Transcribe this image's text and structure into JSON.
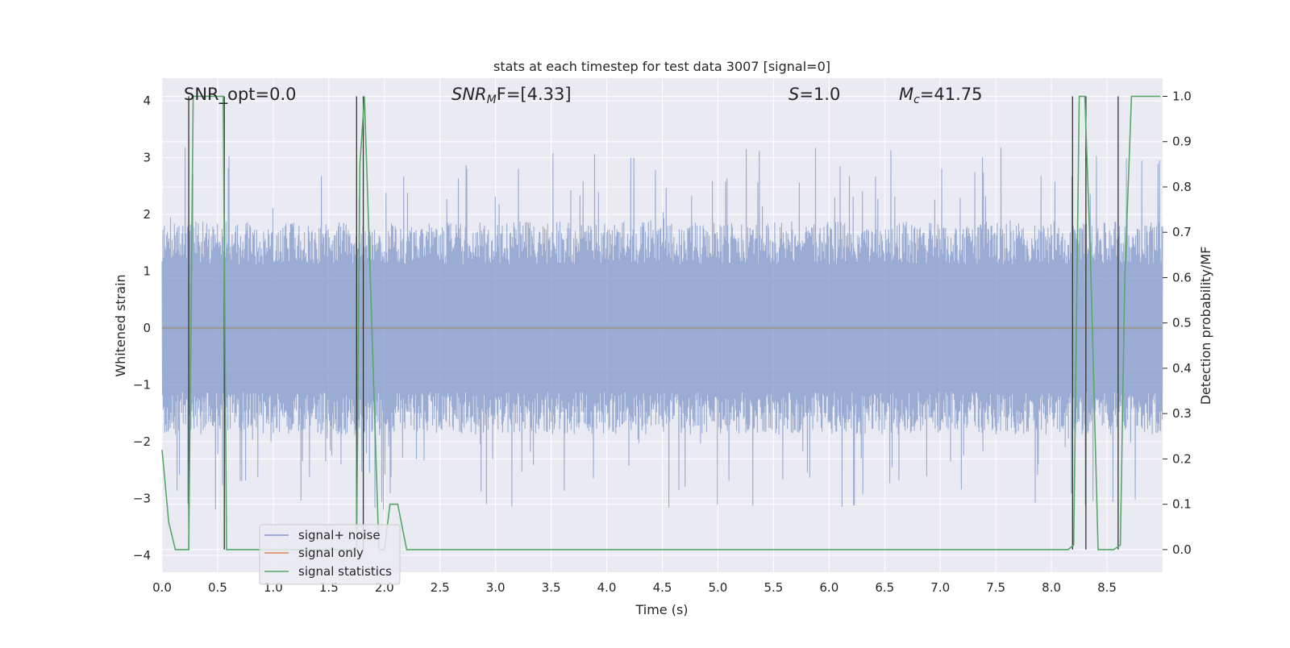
{
  "chart_data": {
    "type": "line",
    "title": "stats at each timestep for test data 3007 [signal=0]",
    "xlabel": "Time (s)",
    "ylabel": "Whitened strain",
    "y2label": "Detection probability/MF",
    "xlim": [
      0.0,
      9.0
    ],
    "ylim": [
      -4.3,
      4.4
    ],
    "y2lim": [
      -0.05,
      1.04
    ],
    "xticks": [
      "0.0",
      "0.5",
      "1.0",
      "1.5",
      "2.0",
      "2.5",
      "3.0",
      "3.5",
      "4.0",
      "4.5",
      "5.0",
      "5.5",
      "6.0",
      "6.5",
      "7.0",
      "7.5",
      "8.0",
      "8.5"
    ],
    "xtick_values": [
      0.0,
      0.5,
      1.0,
      1.5,
      2.0,
      2.5,
      3.0,
      3.5,
      4.0,
      4.5,
      5.0,
      5.5,
      6.0,
      6.5,
      7.0,
      7.5,
      8.0,
      8.5
    ],
    "yticks": [
      "−4",
      "−3",
      "−2",
      "−1",
      "0",
      "1",
      "2",
      "3",
      "4"
    ],
    "ytick_values": [
      -4,
      -3,
      -2,
      -1,
      0,
      1,
      2,
      3,
      4
    ],
    "y2ticks": [
      "0.0",
      "0.1",
      "0.2",
      "0.3",
      "0.4",
      "0.5",
      "0.6",
      "0.7",
      "0.8",
      "0.9",
      "1.0"
    ],
    "y2tick_values": [
      0.0,
      0.1,
      0.2,
      0.3,
      0.4,
      0.5,
      0.6,
      0.7,
      0.8,
      0.9,
      1.0
    ],
    "grid": true,
    "legend_position": "bottom-left",
    "colors": {
      "noise": "#7f97c8",
      "signal_only": "#dd8452",
      "statistics": "#55a868",
      "markers": "#333333",
      "plot_bg": "#eaeaf2",
      "grid": "#ffffff"
    },
    "annotations": {
      "snr_opt": "SNR_opt=0.0",
      "snr_mf_main": "SNR",
      "snr_mf_sub": "M",
      "snr_mf_tail": "F=[4.33]",
      "s_main": "S",
      "s_tail": "=1.0",
      "mc_main": "M",
      "mc_sub": "c",
      "mc_tail": "=41.75"
    },
    "series": [
      {
        "name": "signal+ noise",
        "style": "dense noisy strain, bulk envelope about ±1.5, peaks to about ±3",
        "envelope_abs": 1.5,
        "peak_abs": 3.2
      },
      {
        "name": "signal only",
        "x": [
          0.0,
          9.0
        ],
        "y": [
          0.0,
          0.0
        ]
      },
      {
        "name": "signal statistics",
        "axis": "right",
        "x": [
          0.0,
          0.06,
          0.12,
          0.2,
          0.24,
          0.28,
          0.34,
          0.42,
          0.5,
          0.55,
          0.58,
          0.62,
          0.75,
          1.7,
          1.75,
          1.78,
          1.82,
          1.88,
          1.95,
          2.0,
          2.05,
          2.12,
          2.2,
          8.15,
          8.2,
          8.25,
          8.3,
          8.35,
          8.42,
          8.48,
          8.56,
          8.62,
          8.66,
          8.72,
          8.85,
          8.98
        ],
        "y": [
          0.22,
          0.06,
          0.0,
          0.0,
          0.0,
          1.0,
          1.0,
          1.0,
          1.0,
          1.0,
          0.0,
          0.0,
          0.0,
          0.0,
          0.0,
          0.85,
          1.0,
          0.55,
          0.0,
          0.0,
          0.1,
          0.1,
          0.0,
          0.0,
          0.01,
          1.0,
          1.0,
          0.65,
          0.0,
          0.0,
          0.0,
          0.01,
          0.6,
          1.0,
          1.0,
          1.0
        ]
      }
    ],
    "marker_lines_x": [
      0.24,
      0.56,
      1.75,
      1.81,
      8.19,
      8.31,
      8.6
    ]
  }
}
